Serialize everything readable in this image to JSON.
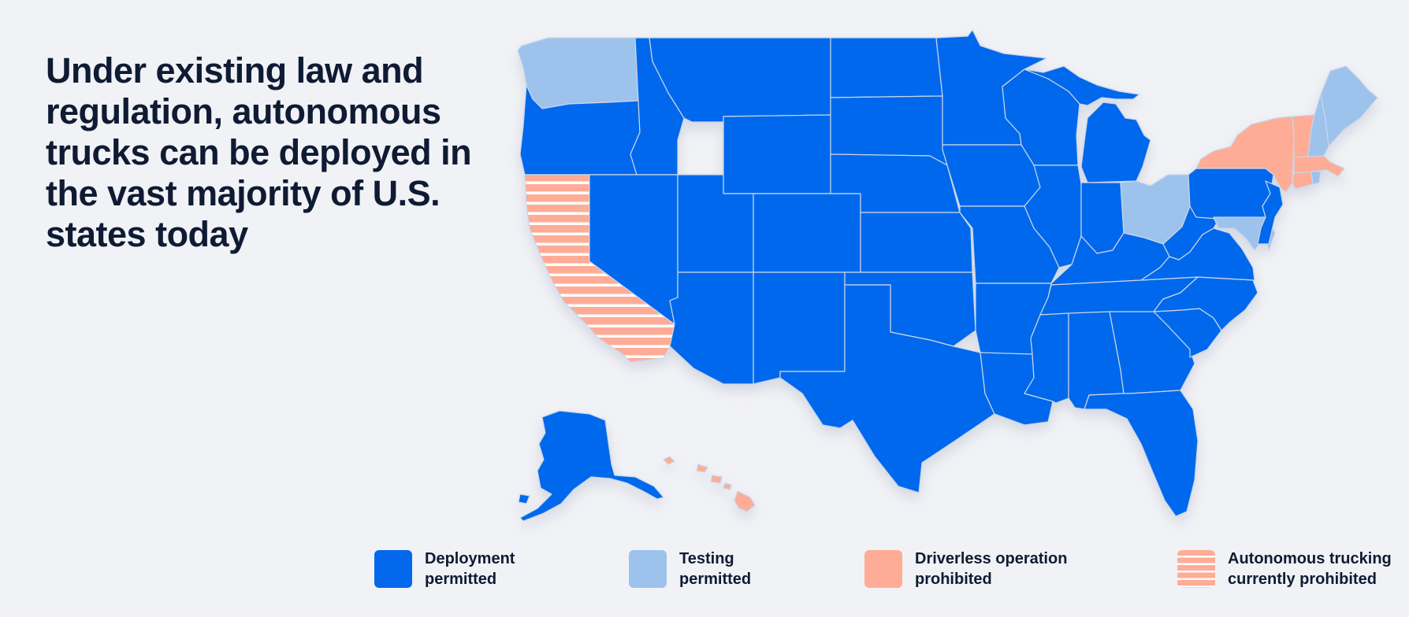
{
  "headline": {
    "lines": [
      "Under existing law and",
      "regulation, autonomous",
      "trucks can be deployed in",
      "the vast majority of U.S.",
      "states today"
    ]
  },
  "colors": {
    "deployment": "#0468ec",
    "testing": "#9dc2ec",
    "driverless_prohibited": "#ffac96",
    "stripe": "#ffffff",
    "border": "#c9d6ea",
    "text": "#0f1b33",
    "background": "#f1f2f6"
  },
  "legend": [
    {
      "lines": [
        "Deployment",
        "permitted"
      ],
      "category": "deployment"
    },
    {
      "lines": [
        "Testing",
        "permitted"
      ],
      "category": "testing"
    },
    {
      "lines": [
        "Driverless operation",
        "prohibited"
      ],
      "category": "driverless_prohibited"
    },
    {
      "lines": [
        "Autonomous trucking",
        "currently prohibited"
      ],
      "category": "prohibited"
    }
  ],
  "map": {
    "states_by_category": {
      "prohibited": [
        "California"
      ],
      "driverless_prohibited": [
        "New York",
        "Vermont",
        "Massachusetts",
        "Connecticut",
        "Hawaii"
      ],
      "testing": [
        "Washington",
        "Maine",
        "New Hampshire",
        "Ohio",
        "Maryland",
        "Delaware",
        "Rhode Island"
      ],
      "deployment": [
        "Oregon",
        "Idaho",
        "Montana",
        "Wyoming",
        "Nevada",
        "Utah",
        "Colorado",
        "Arizona",
        "New Mexico",
        "North Dakota",
        "South Dakota",
        "Nebraska",
        "Kansas",
        "Oklahoma",
        "Texas",
        "Minnesota",
        "Iowa",
        "Missouri",
        "Arkansas",
        "Louisiana",
        "Wisconsin",
        "Illinois",
        "Michigan",
        "Indiana",
        "Kentucky",
        "Tennessee",
        "Mississippi",
        "Alabama",
        "Georgia",
        "Florida",
        "South Carolina",
        "North Carolina",
        "Virginia",
        "West Virginia",
        "Pennsylvania",
        "New Jersey",
        "Alaska"
      ]
    }
  }
}
